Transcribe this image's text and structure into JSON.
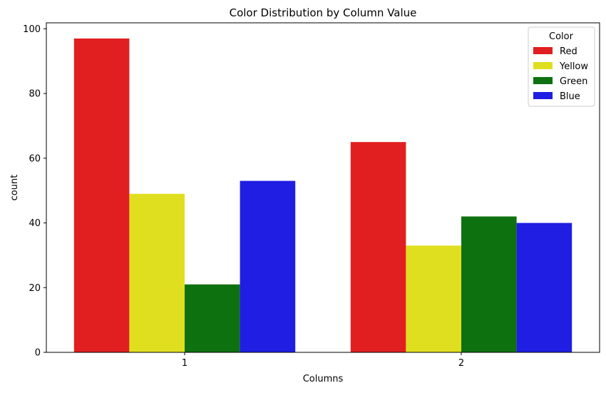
{
  "chart_data": {
    "type": "bar",
    "title": "Color Distribution by Column Value",
    "xlabel": "Columns",
    "ylabel": "count",
    "categories": [
      "1",
      "2"
    ],
    "ylim": [
      0,
      101.85
    ],
    "yticks": [
      0,
      20,
      40,
      60,
      80,
      100
    ],
    "grid": false,
    "legend": {
      "title": "Color",
      "placement": "top-right"
    },
    "series": [
      {
        "name": "Red",
        "color": "#e11f20",
        "values": [
          97,
          65
        ]
      },
      {
        "name": "Yellow",
        "color": "#e0df1f",
        "values": [
          49,
          33
        ]
      },
      {
        "name": "Green",
        "color": "#0e7110",
        "values": [
          21,
          42
        ]
      },
      {
        "name": "Blue",
        "color": "#1f1ee2",
        "values": [
          53,
          40
        ]
      }
    ]
  }
}
